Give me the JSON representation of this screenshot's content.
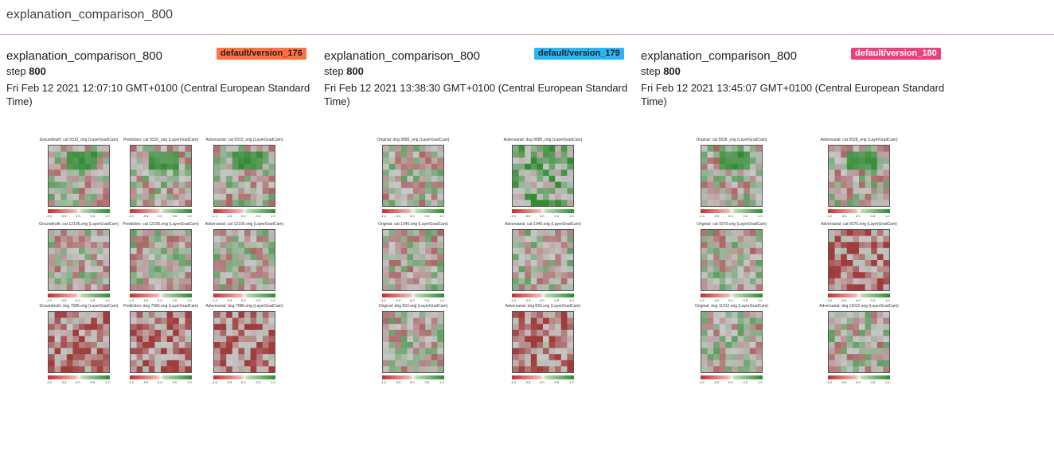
{
  "header": {
    "title": "explanation_comparison_800"
  },
  "colors": {
    "orange": "#ff7043",
    "blue": "#29b6f6",
    "pink": "#ec407a",
    "header_rule": "#e8a39a"
  },
  "cards": [
    {
      "title": "explanation_comparison_800",
      "step_label": "step",
      "step_value": "800",
      "timestamp": "Fri Feb 12 2021 12:07:10 GMT+0100 (Central European Standard Time)",
      "badge": "default/version_176",
      "rows": [
        {
          "labels": [
            "Groundtruth: cat 9310_orig (LayerGradCam)",
            "Prediction: cat 9310_orig (LayerGradCam)",
            "Adversarial: cat 9310_orig (LayerGradCam)"
          ]
        },
        {
          "labels": [
            "Groundtruth: cat 12106.orig (LayerGradCam)",
            "Prediction: cat 12106.orig (LayerGradCam)",
            "Adversarial: cat 12106.orig (LayerGradCam)"
          ]
        },
        {
          "labels": [
            "Groundtruth: dog 7086.orig (LayerGradCam)",
            "Prediction: dog 7086.orig (LayerGradCam)",
            "Adversarial: dog 7086.orig (LayerGradCam)"
          ]
        }
      ]
    },
    {
      "title": "explanation_comparison_800",
      "step_label": "step",
      "step_value": "800",
      "timestamp": "Fri Feb 12 2021 13:38:30 GMT+0100 (Central European Standard Time)",
      "badge": "default/version_179",
      "rows": [
        {
          "labels": [
            "Original: dog 9685_orig (LayerGradCam)",
            "Adversarial: dog 9685_orig (LayerGradCam)"
          ]
        },
        {
          "labels": [
            "Original: cat 1040.orig (LayerGradCam)",
            "Adversarial: cat 1040.orig (LayerGradCam)"
          ]
        },
        {
          "labels": [
            "Original: dog 833.orig (LayerGradCam)",
            "Adversarial: dog 833.orig (LayerGradCam)"
          ]
        }
      ]
    },
    {
      "title": "explanation_comparison_800",
      "step_label": "step",
      "step_value": "800",
      "timestamp": "Fri Feb 12 2021 13:45:07 GMT+0100 (Central European Standard Time)",
      "badge": "default/version_180",
      "rows": [
        {
          "labels": [
            "Original: cat 5528_orig (LayerGradCam)",
            "Adversarial: cat 5528_orig (LayerGradCam)"
          ]
        },
        {
          "labels": [
            "Original: cat 9270.orig (LayerGradCam)",
            "Adversarial: cat 9270.orig (LayerGradCam)"
          ]
        },
        {
          "labels": [
            "Original: dog 11012.orig (LayerGradCam)",
            "Adversarial: dog 11012.orig (LayerGradCam)"
          ]
        }
      ]
    }
  ],
  "colorbar_ticks": [
    "-1.0",
    "-0.5",
    "0.0",
    "0.5",
    "1.0"
  ]
}
